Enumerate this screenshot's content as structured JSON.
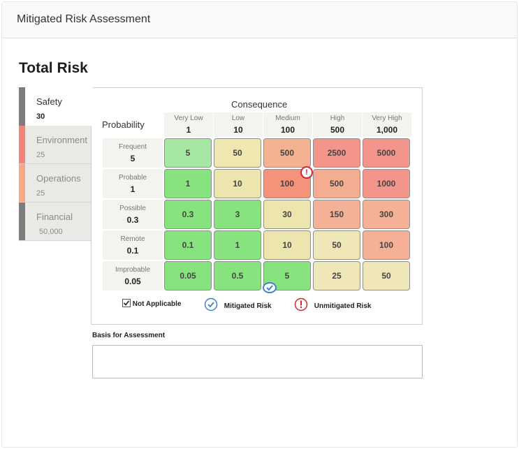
{
  "header": {
    "title": "Mitigated Risk Assessment"
  },
  "section": {
    "title": "Total Risk"
  },
  "tabs": [
    {
      "label": "Safety",
      "value": "30",
      "color": "#7d7d7d",
      "active": true
    },
    {
      "label": "Environment",
      "value": "25",
      "color": "#f5837a",
      "active": false
    },
    {
      "label": "Operations",
      "value": "25",
      "color": "#f6a983",
      "active": false
    },
    {
      "label": "Financial",
      "value": "50,000",
      "color": "#7d7d7d",
      "active": false
    }
  ],
  "matrix": {
    "consequence_title": "Consequence",
    "probability_title": "Probability",
    "columns": [
      {
        "label": "Very Low",
        "value": "1"
      },
      {
        "label": "Low",
        "value": "10"
      },
      {
        "label": "Medium",
        "value": "100"
      },
      {
        "label": "High",
        "value": "500"
      },
      {
        "label": "Very High",
        "value": "1,000"
      }
    ],
    "rows": [
      {
        "label": "Frequent",
        "value": "5",
        "cells": [
          {
            "value": "5",
            "color": "#a7e7a4"
          },
          {
            "value": "50",
            "color": "#efe7b0"
          },
          {
            "value": "500",
            "color": "#f5b292"
          },
          {
            "value": "2500",
            "color": "#f4958c"
          },
          {
            "value": "5000",
            "color": "#f4958c"
          }
        ]
      },
      {
        "label": "Probable",
        "value": "1",
        "cells": [
          {
            "value": "1",
            "color": "#87e37e"
          },
          {
            "value": "10",
            "color": "#ece5ae"
          },
          {
            "value": "100",
            "color": "#f5927a",
            "unmitigated": true
          },
          {
            "value": "500",
            "color": "#f5ad91"
          },
          {
            "value": "1000",
            "color": "#f4958c"
          }
        ]
      },
      {
        "label": "Possible",
        "value": "0.3",
        "cells": [
          {
            "value": "0.3",
            "color": "#87e37e"
          },
          {
            "value": "3",
            "color": "#87e37e"
          },
          {
            "value": "30",
            "color": "#ece5ae"
          },
          {
            "value": "150",
            "color": "#f5b196"
          },
          {
            "value": "300",
            "color": "#f5b196"
          }
        ]
      },
      {
        "label": "Remote",
        "value": "0.1",
        "cells": [
          {
            "value": "0.1",
            "color": "#87e37e"
          },
          {
            "value": "1",
            "color": "#87e37e"
          },
          {
            "value": "10",
            "color": "#ece5ae"
          },
          {
            "value": "50",
            "color": "#efe7b8"
          },
          {
            "value": "100",
            "color": "#f5b196"
          }
        ]
      },
      {
        "label": "Improbable",
        "value": "0.05",
        "cells": [
          {
            "value": "0.05",
            "color": "#87e37e"
          },
          {
            "value": "0.5",
            "color": "#87e37e"
          },
          {
            "value": "5",
            "color": "#87e37e",
            "mitigated": true
          },
          {
            "value": "25",
            "color": "#efe7b8"
          },
          {
            "value": "50",
            "color": "#efe7b8"
          }
        ]
      }
    ]
  },
  "legend": {
    "not_applicable": "Not Applicable",
    "mitigated": "Mitigated Risk",
    "unmitigated": "Unmitigated Risk"
  },
  "basis": {
    "label": "Basis for Assessment",
    "value": ""
  },
  "icons": {
    "unmitigated": "exclamation-circle-icon",
    "mitigated": "check-circle-icon",
    "checkbox": "checked-checkbox-icon"
  },
  "colors": {
    "unmitigated": "#d0262b",
    "mitigated": "#3e7fd4"
  }
}
